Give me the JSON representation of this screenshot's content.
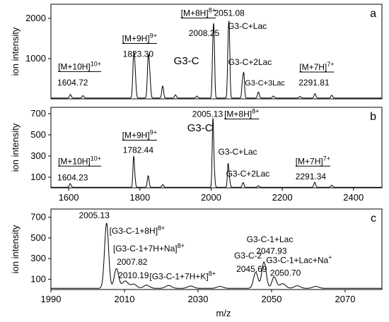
{
  "chart_data": [
    {
      "type": "line",
      "panel_letter": "a",
      "ylabel": "ion intensity",
      "xlabel": "",
      "xlim": [
        1550,
        2480
      ],
      "ylim": [
        0,
        2350
      ],
      "x_ticks": [],
      "y_ticks": [
        1000,
        2000
      ],
      "baseline": 20,
      "peaks": [
        {
          "x": 1604.7,
          "y": 90,
          "w": 2.5
        },
        {
          "x": 1640,
          "y": 60,
          "w": 2.5
        },
        {
          "x": 1782.4,
          "y": 960,
          "w": 2.5
        },
        {
          "x": 1786.5,
          "y": 550,
          "w": 2.5
        },
        {
          "x": 1823.3,
          "y": 930,
          "w": 2.5
        },
        {
          "x": 1827.5,
          "y": 520,
          "w": 2.5
        },
        {
          "x": 1864,
          "y": 300,
          "w": 2.5
        },
        {
          "x": 1900,
          "y": 80,
          "w": 2.5
        },
        {
          "x": 1960,
          "y": 50,
          "w": 2.5
        },
        {
          "x": 2005.1,
          "y": 1130,
          "w": 2
        },
        {
          "x": 2008.25,
          "y": 1380,
          "w": 2
        },
        {
          "x": 2047.9,
          "y": 1100,
          "w": 2
        },
        {
          "x": 2051.08,
          "y": 1480,
          "w": 2
        },
        {
          "x": 2088,
          "y": 370,
          "w": 2
        },
        {
          "x": 2092,
          "y": 580,
          "w": 2
        },
        {
          "x": 2133,
          "y": 150,
          "w": 2.5
        },
        {
          "x": 2175,
          "y": 50,
          "w": 2.5
        },
        {
          "x": 2250,
          "y": 40,
          "w": 2.5
        },
        {
          "x": 2291.8,
          "y": 110,
          "w": 2.5
        },
        {
          "x": 2339,
          "y": 70,
          "w": 2.5
        }
      ],
      "annotations": [
        {
          "text": "[M+10H]",
          "sup": "10+",
          "x": 1570,
          "y": 730,
          "underline": true
        },
        {
          "text": "1604.72",
          "x": 1568,
          "y": 330
        },
        {
          "text": "[M+9H]",
          "sup": "9+",
          "x": 1750,
          "y": 1430,
          "underline": true
        },
        {
          "text": "1823.30",
          "x": 1752,
          "y": 1040
        },
        {
          "text": "[M+8H]",
          "sup": "8+",
          "x": 1915,
          "y": 2060,
          "underline": true
        },
        {
          "text": "2051.08",
          "x": 2008,
          "y": 2060
        },
        {
          "text": "2008.25",
          "x": 1937,
          "y": 1560
        },
        {
          "text": "G3-C+Lac",
          "x": 2047,
          "y": 1740
        },
        {
          "text": "G3-C",
          "x": 1895,
          "y": 860,
          "size": 15
        },
        {
          "text": "G3-C+2Lac",
          "x": 2048,
          "y": 840
        },
        {
          "text": "G3-C+3Lac",
          "x": 2095,
          "y": 330,
          "size": 11
        },
        {
          "text": "[M+7H]",
          "sup": "7+",
          "x": 2248,
          "y": 720,
          "underline": true
        },
        {
          "text": "2291.81",
          "x": 2246,
          "y": 330
        }
      ]
    },
    {
      "type": "line",
      "panel_letter": "b",
      "ylabel": "ion intensity",
      "xlabel": "",
      "xlim": [
        1550,
        2480
      ],
      "ylim": [
        0,
        760
      ],
      "x_ticks": [
        1600,
        1800,
        2000,
        2200,
        2400
      ],
      "y_ticks": [
        100,
        300,
        500,
        700
      ],
      "baseline": 5,
      "peaks": [
        {
          "x": 1604.2,
          "y": 35,
          "w": 2.5
        },
        {
          "x": 1782.4,
          "y": 280,
          "w": 2
        },
        {
          "x": 1786,
          "y": 70,
          "w": 2
        },
        {
          "x": 1823.3,
          "y": 110,
          "w": 2.5
        },
        {
          "x": 1864,
          "y": 25,
          "w": 2.5
        },
        {
          "x": 2005.13,
          "y": 635,
          "w": 2
        },
        {
          "x": 2009,
          "y": 120,
          "w": 2
        },
        {
          "x": 2047.9,
          "y": 220,
          "w": 2
        },
        {
          "x": 2052,
          "y": 60,
          "w": 2
        },
        {
          "x": 2090,
          "y": 45,
          "w": 2.5
        },
        {
          "x": 2133,
          "y": 15,
          "w": 2.5
        },
        {
          "x": 2291.3,
          "y": 48,
          "w": 2.5
        },
        {
          "x": 2339,
          "y": 20,
          "w": 2.5
        }
      ],
      "annotations": [
        {
          "text": "[M+10H]",
          "sup": "10+",
          "x": 1570,
          "y": 225,
          "underline": true
        },
        {
          "text": "1604.23",
          "x": 1568,
          "y": 70
        },
        {
          "text": "[M+9H]",
          "sup": "9+",
          "x": 1750,
          "y": 470,
          "underline": true
        },
        {
          "text": "1782.44",
          "x": 1752,
          "y": 330
        },
        {
          "text": "2005.13",
          "x": 1947,
          "y": 670
        },
        {
          "text": "[M+8H]",
          "sup": "8+",
          "x": 2037,
          "y": 670,
          "underline": true
        },
        {
          "text": "G3-C",
          "x": 1933,
          "y": 535,
          "size": 15
        },
        {
          "text": "G3-C+Lac",
          "x": 2020,
          "y": 312
        },
        {
          "text": "G3-C+2Lac",
          "x": 2042,
          "y": 108
        },
        {
          "text": "[M+7H]",
          "sup": "7+",
          "x": 2237,
          "y": 225,
          "underline": true
        },
        {
          "text": "2291.34",
          "x": 2237,
          "y": 80
        }
      ]
    },
    {
      "type": "line",
      "panel_letter": "c",
      "ylabel": "ion intensity",
      "xlabel": "m/z",
      "xlim": [
        1990,
        2080
      ],
      "ylim": [
        0,
        780
      ],
      "x_ticks": [
        1990,
        2010,
        2030,
        2050,
        2070
      ],
      "y_ticks": [
        100,
        300,
        500,
        700
      ],
      "baseline": 12,
      "peaks": [
        {
          "x": 2005.13,
          "y": 630,
          "w": 0.55
        },
        {
          "x": 2007.82,
          "y": 190,
          "w": 0.6
        },
        {
          "x": 2010.19,
          "y": 70,
          "w": 0.8
        },
        {
          "x": 2012.5,
          "y": 40,
          "w": 0.8
        },
        {
          "x": 2016,
          "y": 30,
          "w": 0.8
        },
        {
          "x": 2022,
          "y": 28,
          "w": 0.8
        },
        {
          "x": 2028,
          "y": 22,
          "w": 0.8
        },
        {
          "x": 2036,
          "y": 18,
          "w": 0.8
        },
        {
          "x": 2045.69,
          "y": 155,
          "w": 0.6
        },
        {
          "x": 2047.93,
          "y": 255,
          "w": 0.6
        },
        {
          "x": 2050.7,
          "y": 110,
          "w": 0.6
        },
        {
          "x": 2053,
          "y": 45,
          "w": 0.8
        },
        {
          "x": 2057,
          "y": 25,
          "w": 0.8
        },
        {
          "x": 2062,
          "y": 18,
          "w": 0.8
        }
      ],
      "annotations": [
        {
          "text": "2005.13",
          "x": 1997.6,
          "y": 690
        },
        {
          "text": "[G3-C-1+8H]",
          "sup": "8+",
          "x": 2005.9,
          "y": 540
        },
        {
          "text": "[G3-C-1+7H+Na]",
          "sup": "8+",
          "x": 2006.9,
          "y": 370
        },
        {
          "text": "2007.82",
          "x": 2007.9,
          "y": 240
        },
        {
          "text": "2010.19",
          "x": 2008.3,
          "y": 110
        },
        {
          "text": "[G3-C-1+7H+K]",
          "sup": "8+",
          "x": 2016.8,
          "y": 100
        },
        {
          "text": "G3-C-2",
          "x": 2039.8,
          "y": 300
        },
        {
          "text": "2045.69",
          "x": 2040.4,
          "y": 170
        },
        {
          "text": "G3-C-1+Lac",
          "x": 2043.2,
          "y": 460
        },
        {
          "text": "2047.93",
          "x": 2045.8,
          "y": 345
        },
        {
          "text": "G3-C-1+Lac+Na",
          "sup": "+",
          "x": 2048.5,
          "y": 255
        },
        {
          "text": "2050.70",
          "x": 2049.6,
          "y": 135
        }
      ]
    }
  ]
}
